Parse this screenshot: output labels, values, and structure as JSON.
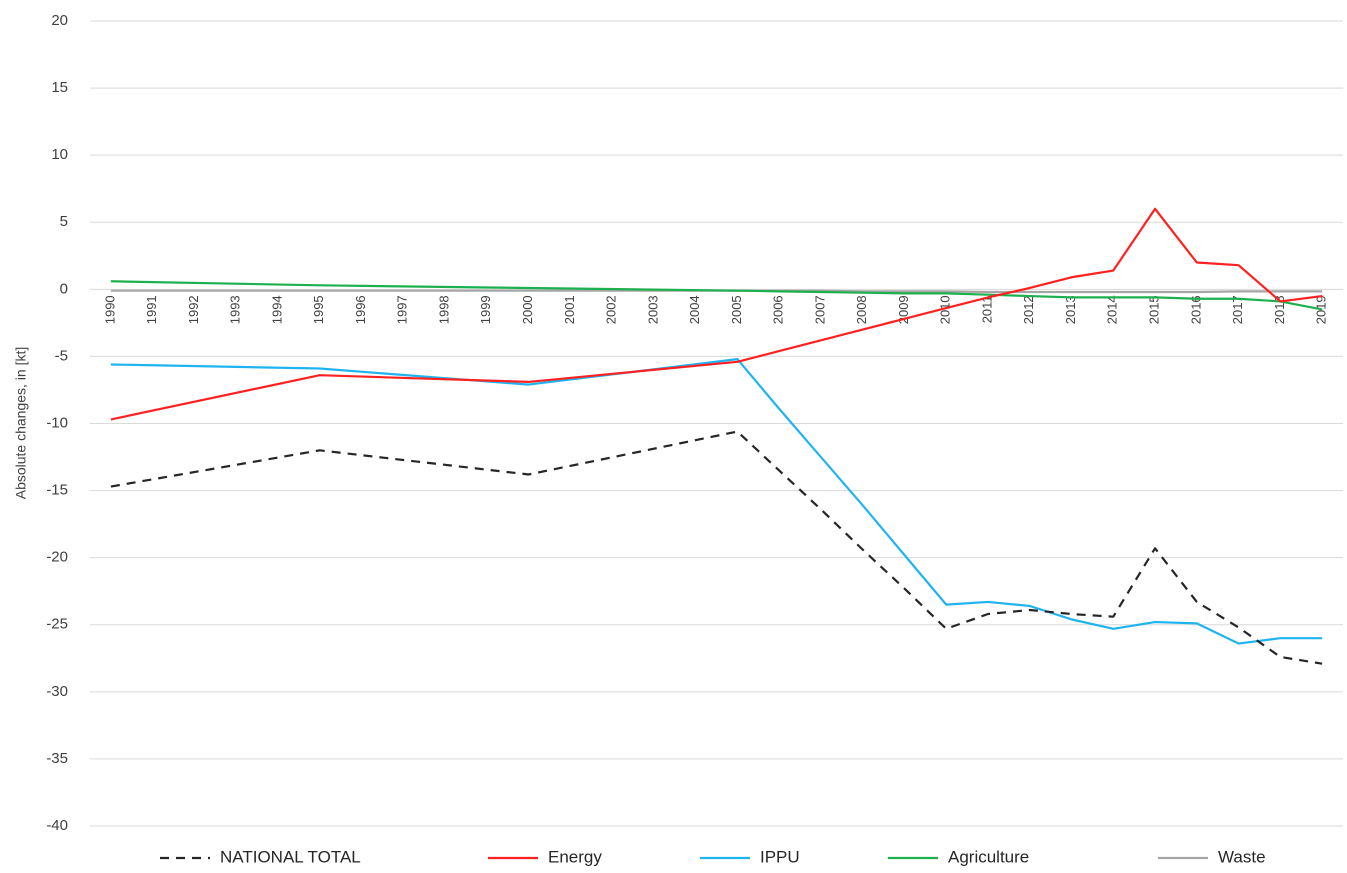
{
  "chart_data": {
    "type": "line",
    "y_label": "Absolute changes, in [kt]",
    "x": [
      1990,
      1995,
      2000,
      2005,
      2006,
      2007,
      2008,
      2009,
      2010,
      2011,
      2012,
      2013,
      2014,
      2015,
      2016,
      2017,
      2018,
      2019
    ],
    "xlim": [
      1989.5,
      2019.5
    ],
    "xticks": [
      1990,
      1991,
      1992,
      1993,
      1994,
      1995,
      1996,
      1997,
      1998,
      1999,
      2000,
      2001,
      2002,
      2003,
      2004,
      2005,
      2006,
      2007,
      2008,
      2009,
      2010,
      2011,
      2012,
      2013,
      2014,
      2015,
      2016,
      2017,
      2018,
      2019
    ],
    "ylim": [
      -40,
      20
    ],
    "yticks": [
      -40,
      -35,
      -30,
      -25,
      -20,
      -15,
      -10,
      -5,
      0,
      5,
      10,
      15,
      20
    ],
    "grid": true,
    "legend": "bottom",
    "series": [
      {
        "name": "NATIONAL TOTAL",
        "color": "#262626",
        "dashed": true,
        "values": [
          -14.7,
          -12.0,
          -13.8,
          -10.6,
          -13.5,
          -16.4,
          -19.4,
          -22.3,
          -25.3,
          -24.2,
          -23.9,
          -24.2,
          -24.4,
          -19.3,
          -23.3,
          -25.2,
          -27.4,
          -27.9
        ]
      },
      {
        "name": "Energy",
        "color": "#ff2020",
        "values": [
          -9.7,
          -6.4,
          -6.9,
          -5.4,
          -4.6,
          -3.8,
          -3.0,
          -2.2,
          -1.4,
          -0.6,
          0.1,
          0.9,
          1.4,
          6.0,
          2.0,
          1.8,
          -0.9,
          -0.5
        ]
      },
      {
        "name": "IPPU",
        "color": "#1fb4f0",
        "values": [
          -5.6,
          -5.9,
          -7.1,
          -5.2,
          -8.9,
          -12.5,
          -16.1,
          -19.8,
          -23.5,
          -23.3,
          -23.6,
          -24.6,
          -25.3,
          -24.8,
          -24.9,
          -26.4,
          -26.0,
          -26.0
        ]
      },
      {
        "name": "Agriculture",
        "color": "#1db04e",
        "values": [
          0.6,
          0.3,
          0.1,
          -0.1,
          -0.15,
          -0.2,
          -0.25,
          -0.3,
          -0.3,
          -0.4,
          -0.5,
          -0.6,
          -0.6,
          -0.6,
          -0.7,
          -0.7,
          -0.9,
          -1.5
        ]
      },
      {
        "name": "Waste",
        "color": "#a6a6a6",
        "values": [
          -0.1,
          -0.1,
          -0.1,
          -0.1,
          -0.1,
          -0.1,
          -0.15,
          -0.15,
          -0.15,
          -0.2,
          -0.2,
          -0.2,
          -0.2,
          -0.2,
          -0.2,
          -0.15,
          -0.15,
          -0.15
        ]
      }
    ]
  }
}
